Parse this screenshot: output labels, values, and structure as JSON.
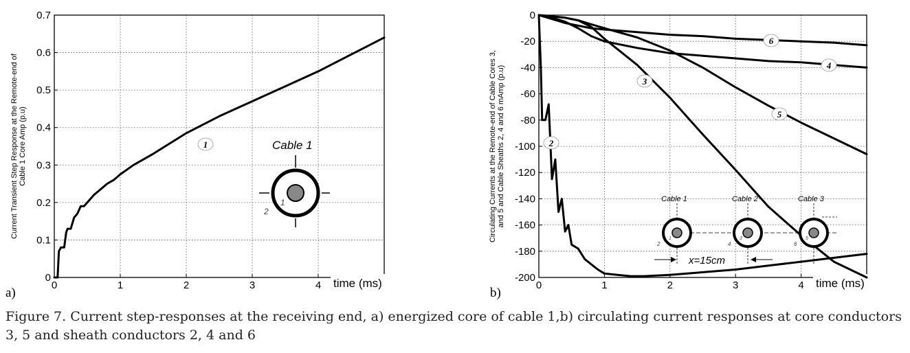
{
  "chart_data": [
    {
      "type": "line",
      "panel_label": "a)",
      "title": "",
      "xlabel": "time (ms)",
      "ylabel_lines": [
        "Current Transient Step Response at the Remote-end of",
        "Cable 1 Core Amp (p.u)"
      ],
      "xlim": [
        0,
        5
      ],
      "ylim": [
        0,
        0.7
      ],
      "xticks": [
        0,
        1,
        2,
        3,
        4
      ],
      "yticks": [
        0,
        0.1,
        0.2,
        0.3,
        0.4,
        0.5,
        0.6,
        0.7
      ],
      "xtick_labels": [
        "0",
        "1",
        "2",
        "3",
        "4"
      ],
      "ytick_labels": [
        "0",
        "0.1",
        "0.2",
        "0.3",
        "0.4",
        "0.5",
        "0.6",
        "0.7"
      ],
      "grid": true,
      "series": [
        {
          "name": "1",
          "label": "1",
          "x": [
            0,
            0.05,
            0.07,
            0.1,
            0.15,
            0.18,
            0.2,
            0.25,
            0.3,
            0.35,
            0.4,
            0.45,
            0.5,
            0.55,
            0.6,
            0.7,
            0.8,
            0.9,
            1.0,
            1.2,
            1.5,
            2.0,
            2.5,
            3.0,
            3.5,
            4.0,
            4.5,
            5.0
          ],
          "y": [
            0,
            0,
            0.07,
            0.08,
            0.08,
            0.12,
            0.13,
            0.13,
            0.16,
            0.17,
            0.19,
            0.19,
            0.2,
            0.21,
            0.22,
            0.235,
            0.25,
            0.26,
            0.275,
            0.3,
            0.33,
            0.385,
            0.43,
            0.47,
            0.51,
            0.55,
            0.595,
            0.64
          ]
        }
      ],
      "annotations": [
        "1"
      ],
      "inset": {
        "title": "Cable 1",
        "labels": [
          "1",
          "2"
        ]
      }
    },
    {
      "type": "line",
      "panel_label": "b)",
      "title": "",
      "xlabel": "time (ms)",
      "ylabel_lines": [
        "Circulating Currents at the Remote-end of Cable Cores 3,",
        "and 5 and Cable Sheaths 2, 4 and 6 mAmp (p.u)"
      ],
      "xlim": [
        0,
        5
      ],
      "ylim": [
        -200,
        0
      ],
      "xticks": [
        0,
        1,
        2,
        3,
        4
      ],
      "yticks": [
        0,
        -20,
        -40,
        -60,
        -80,
        -100,
        -120,
        -140,
        -160,
        -180,
        -200
      ],
      "xtick_labels": [
        "0",
        "1",
        "2",
        "3",
        "4"
      ],
      "ytick_labels": [
        "0",
        "-20",
        "-40",
        "-60",
        "-80",
        "-100",
        "-120",
        "-140",
        "-160",
        "-180",
        "-200"
      ],
      "grid": true,
      "series": [
        {
          "name": "2",
          "label": "2",
          "x": [
            0,
            0.03,
            0.05,
            0.1,
            0.15,
            0.2,
            0.25,
            0.3,
            0.35,
            0.4,
            0.45,
            0.5,
            0.6,
            0.7,
            0.8,
            0.9,
            1.0,
            1.2,
            1.4,
            1.6,
            2.0,
            2.5,
            3.0,
            3.5,
            4.0,
            4.5,
            5.0
          ],
          "y": [
            0,
            -40,
            -80,
            -80,
            -68,
            -125,
            -110,
            -150,
            -140,
            -165,
            -160,
            -175,
            -178,
            -186,
            -190,
            -194,
            -197,
            -198,
            -199,
            -199,
            -198,
            -196,
            -194,
            -191,
            -188,
            -185,
            -182
          ]
        },
        {
          "name": "3",
          "label": "3",
          "x": [
            0,
            0.2,
            0.4,
            0.6,
            0.8,
            1.0,
            1.5,
            2.0,
            2.5,
            3.0,
            3.5,
            4.0,
            4.5,
            5.0
          ],
          "y": [
            0,
            -1,
            -2,
            -4,
            -9,
            -18,
            -38,
            -63,
            -91,
            -118,
            -146,
            -168,
            -188,
            -200
          ]
        },
        {
          "name": "4",
          "label": "4",
          "x": [
            0,
            0.2,
            0.4,
            0.6,
            0.8,
            1.0,
            1.5,
            2.0,
            2.5,
            3.0,
            3.5,
            4.0,
            4.5,
            5.0
          ],
          "y": [
            0,
            -2,
            -5,
            -10,
            -16,
            -20,
            -25,
            -29,
            -31,
            -33,
            -35,
            -36,
            -38,
            -40
          ]
        },
        {
          "name": "5",
          "label": "5",
          "x": [
            0,
            0.2,
            0.4,
            0.6,
            0.8,
            1.0,
            1.5,
            2.0,
            2.5,
            3.0,
            3.5,
            4.0,
            4.5,
            5.0
          ],
          "y": [
            0,
            -1,
            -2,
            -4,
            -7,
            -10,
            -17,
            -27,
            -40,
            -55,
            -69,
            -82,
            -94,
            -106
          ]
        },
        {
          "name": "6",
          "label": "6",
          "x": [
            0,
            0.2,
            0.4,
            0.6,
            0.8,
            1.0,
            1.5,
            2.0,
            2.5,
            3.0,
            3.5,
            4.0,
            4.5,
            5.0
          ],
          "y": [
            0,
            -3,
            -6,
            -8,
            -10,
            -11,
            -13,
            -15,
            -16,
            -18,
            -19,
            -20,
            -21,
            -23
          ]
        }
      ],
      "annotations": [
        "2",
        "3",
        "4",
        "5",
        "6"
      ],
      "inset": {
        "cables": [
          "Cable 1",
          "Cable 2",
          "Cable 3"
        ],
        "core_labels": [
          "1",
          "3",
          "5"
        ],
        "sheath_labels": [
          "2",
          "4",
          "6"
        ],
        "spacing": "x=15cm"
      }
    }
  ],
  "caption": {
    "line1": "Figure 7.  Current step-responses at the receiving end, a) energized core of cable 1,b) circulating current responses at core conductors",
    "line2": "3, 5 and sheath conductors 2, 4 and 6"
  }
}
